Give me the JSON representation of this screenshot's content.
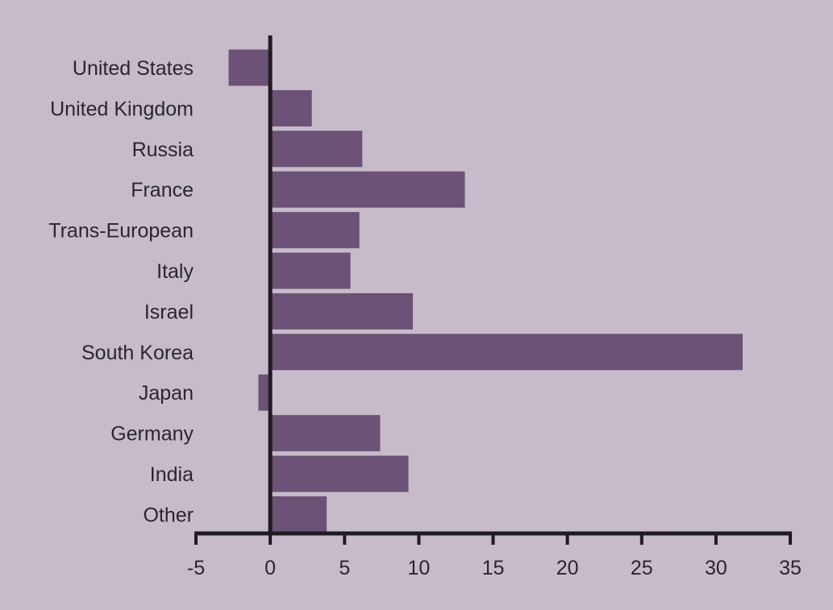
{
  "chart_data": {
    "type": "bar",
    "orientation": "horizontal",
    "title": "",
    "xlabel": "",
    "ylabel": "",
    "categories": [
      "United States",
      "United Kingdom",
      "Russia",
      "France",
      "Trans-European",
      "Italy",
      "Israel",
      "South Korea",
      "Japan",
      "Germany",
      "India",
      "Other"
    ],
    "values": [
      -2.8,
      2.8,
      6.2,
      13.1,
      6.0,
      5.4,
      9.6,
      31.8,
      -0.8,
      7.4,
      9.3,
      3.8
    ],
    "xlim": [
      -5,
      35
    ],
    "xticks": [
      "-5",
      "0",
      "5",
      "10",
      "15",
      "20",
      "25",
      "30",
      "35"
    ],
    "grid": false,
    "legend": "none",
    "colors": {
      "background": "#c8bbc9",
      "bar": "#6b5276",
      "axis": "#1f1b22",
      "text": "#2a2530"
    }
  }
}
